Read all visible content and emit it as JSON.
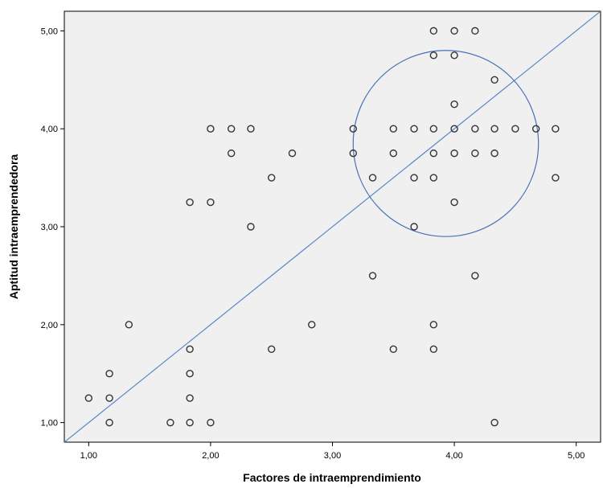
{
  "chart_data": {
    "type": "scatter",
    "xlabel": "Factores de intraemprendimiento",
    "ylabel": "Aptitud intraemprendedora",
    "xlim": [
      0.8,
      5.2
    ],
    "ylim": [
      0.8,
      5.2
    ],
    "x_ticks": [
      {
        "value": 1,
        "label": "1,00"
      },
      {
        "value": 2,
        "label": "2,00"
      },
      {
        "value": 3,
        "label": "3,00"
      },
      {
        "value": 4,
        "label": "4,00"
      },
      {
        "value": 5,
        "label": "5,00"
      }
    ],
    "y_ticks": [
      {
        "value": 1,
        "label": "1,00"
      },
      {
        "value": 2,
        "label": "2,00"
      },
      {
        "value": 3,
        "label": "3,00"
      },
      {
        "value": 4,
        "label": "4,00"
      },
      {
        "value": 5,
        "label": "5,00"
      }
    ],
    "grid": false,
    "plot_background": "#f0f0f0",
    "marker_color": "#333333",
    "fit_line": {
      "color": "#5b87c9",
      "from": [
        0.8,
        0.8
      ],
      "to": [
        5.2,
        5.2
      ]
    },
    "circle_annotation": {
      "color": "#4a70b8",
      "center": [
        3.93,
        3.85
      ],
      "rx": 0.76,
      "ry": 0.95
    },
    "points": [
      [
        1.0,
        1.25
      ],
      [
        1.17,
        1.5
      ],
      [
        1.17,
        1.25
      ],
      [
        1.17,
        1.0
      ],
      [
        1.33,
        2.0
      ],
      [
        1.67,
        1.0
      ],
      [
        1.83,
        1.0
      ],
      [
        1.83,
        1.25
      ],
      [
        1.83,
        1.5
      ],
      [
        1.83,
        1.75
      ],
      [
        1.83,
        3.25
      ],
      [
        2.0,
        1.0
      ],
      [
        2.0,
        3.25
      ],
      [
        2.0,
        4.0
      ],
      [
        2.17,
        4.0
      ],
      [
        2.17,
        3.75
      ],
      [
        2.33,
        4.0
      ],
      [
        2.33,
        3.0
      ],
      [
        2.5,
        3.5
      ],
      [
        2.5,
        1.75
      ],
      [
        2.67,
        3.75
      ],
      [
        2.83,
        2.0
      ],
      [
        3.17,
        4.0
      ],
      [
        3.17,
        3.75
      ],
      [
        3.33,
        3.5
      ],
      [
        3.33,
        2.5
      ],
      [
        3.5,
        4.0
      ],
      [
        3.5,
        3.75
      ],
      [
        3.5,
        1.75
      ],
      [
        3.67,
        4.0
      ],
      [
        3.67,
        3.5
      ],
      [
        3.67,
        3.0
      ],
      [
        3.83,
        5.0
      ],
      [
        3.83,
        4.75
      ],
      [
        3.83,
        4.0
      ],
      [
        3.83,
        3.75
      ],
      [
        3.83,
        3.5
      ],
      [
        3.83,
        2.0
      ],
      [
        3.83,
        1.75
      ],
      [
        4.0,
        5.0
      ],
      [
        4.0,
        4.75
      ],
      [
        4.0,
        4.25
      ],
      [
        4.0,
        4.0
      ],
      [
        4.0,
        3.75
      ],
      [
        4.0,
        3.25
      ],
      [
        4.17,
        5.0
      ],
      [
        4.17,
        4.0
      ],
      [
        4.17,
        3.75
      ],
      [
        4.17,
        2.5
      ],
      [
        4.33,
        4.5
      ],
      [
        4.33,
        4.0
      ],
      [
        4.33,
        3.75
      ],
      [
        4.33,
        1.0
      ],
      [
        4.5,
        4.0
      ],
      [
        4.67,
        4.0
      ],
      [
        4.83,
        4.0
      ],
      [
        4.83,
        3.5
      ]
    ]
  }
}
